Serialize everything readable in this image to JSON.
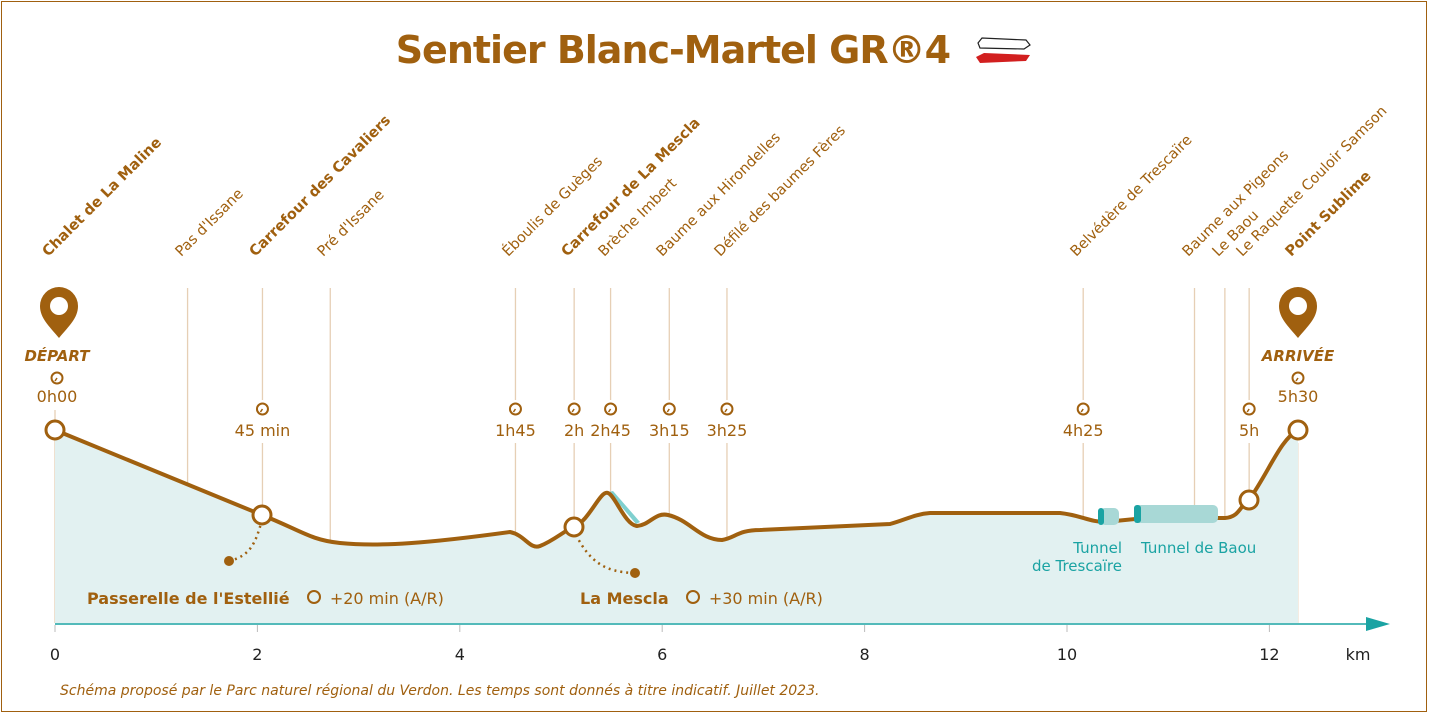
{
  "title": "Sentier Blanc-Martel GR®4",
  "colors": {
    "accent": "#a0600f",
    "fill": "#e2f1f1",
    "axis": "#1aa3a3",
    "tunnel": "#a8d8d6",
    "flag_red": "#d21f1f"
  },
  "start": {
    "label": "DÉPART",
    "time": "0h00",
    "icon": "map-pin-icon"
  },
  "finish": {
    "label": "ARRIVÉE",
    "time": "5h30",
    "icon": "map-pin-icon"
  },
  "waypoints": [
    {
      "name": "Chalet de La Maline",
      "km": 0,
      "bold": true
    },
    {
      "name": "Pas d'Issane",
      "km": 1.31,
      "bold": false
    },
    {
      "name": "Carrefour des Cavaliers",
      "km": 2.05,
      "bold": true,
      "time": "45 min"
    },
    {
      "name": "Pré d'Issane",
      "km": 2.72,
      "bold": false
    },
    {
      "name": "Éboulis de Guèges",
      "km": 4.55,
      "bold": false,
      "time": "1h45"
    },
    {
      "name": "Carrefour de La Mescla",
      "km": 5.13,
      "bold": true,
      "time": "2h"
    },
    {
      "name": "Brèche Imbert",
      "km": 5.49,
      "bold": false,
      "time": "2h45"
    },
    {
      "name": "Baume aux Hirondelles",
      "km": 6.07,
      "bold": false,
      "time": "3h15"
    },
    {
      "name": "Défilé des baumes Fères",
      "km": 6.64,
      "bold": false,
      "time": "3h25"
    },
    {
      "name": "Belvédère de Trescaïre",
      "km": 10.16,
      "bold": false,
      "time": "4h25"
    },
    {
      "name": "Baume aux Pigeons",
      "km": 11.26,
      "bold": false
    },
    {
      "name": "Le Baou",
      "km": 11.56,
      "bold": false
    },
    {
      "name": "Le Raquette Couloir Samson",
      "km": 11.8,
      "bold": false,
      "time": "5h"
    },
    {
      "name": "Point Sublime",
      "km": 12.28,
      "bold": true
    }
  ],
  "side_trips": [
    {
      "name": "Passerelle de l'Estellié",
      "extra": "+20 min (A/R)"
    },
    {
      "name": "La Mescla",
      "extra": "+30 min (A/R)"
    }
  ],
  "tunnels": [
    {
      "line1": "Tunnel",
      "line2": "de Trescaïre"
    },
    {
      "line1": "Tunnel de Baou"
    }
  ],
  "axis": {
    "ticks": [
      "0",
      "2",
      "4",
      "6",
      "8",
      "10",
      "12"
    ],
    "unit": "km"
  },
  "footer": "Schéma proposé par le Parc naturel régional du Verdon. Les temps sont donnés à titre indicatif. Juillet 2023."
}
